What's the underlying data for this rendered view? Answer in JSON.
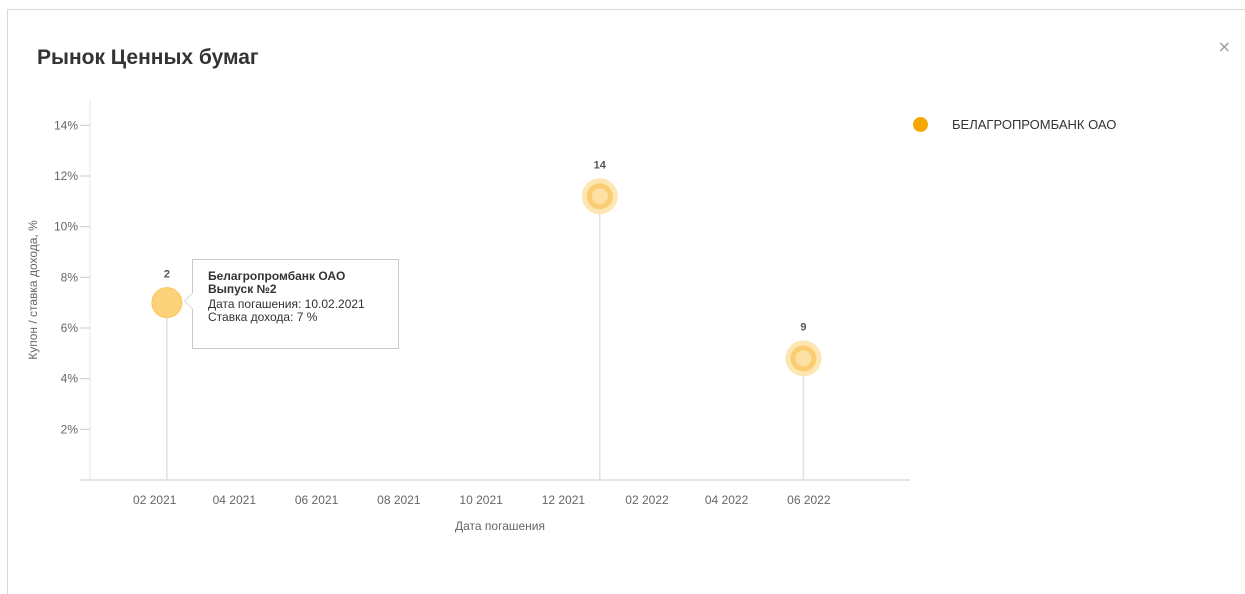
{
  "modal": {
    "title": "Рынок Ценных бумаг",
    "close_label": "×"
  },
  "tooltip": {
    "title_line1": "Белагропромбанк ОАО",
    "title_line2": "Выпуск №2",
    "maturity_label": "Дата погашения: 10.02.2021",
    "rate_label": "Ставка дохода: 7 %"
  },
  "chart_data": {
    "type": "scatter",
    "title": "",
    "xlabel": "Дата погашения",
    "ylabel": "Купон / ставка дохода, %",
    "ylim": [
      0,
      15
    ],
    "yticks": [
      {
        "value": 2,
        "label": "2%"
      },
      {
        "value": 4,
        "label": "4%"
      },
      {
        "value": 6,
        "label": "6%"
      },
      {
        "value": 8,
        "label": "8%"
      },
      {
        "value": 10,
        "label": "10%"
      },
      {
        "value": 12,
        "label": "12%"
      },
      {
        "value": 14,
        "label": "14%"
      }
    ],
    "xlim": [
      "2020-12-15",
      "2022-08-15"
    ],
    "xticks": [
      {
        "date": "2021-02-01",
        "label": "02 2021"
      },
      {
        "date": "2021-04-01",
        "label": "04 2021"
      },
      {
        "date": "2021-06-01",
        "label": "06 2021"
      },
      {
        "date": "2021-08-01",
        "label": "08 2021"
      },
      {
        "date": "2021-10-01",
        "label": "10 2021"
      },
      {
        "date": "2021-12-01",
        "label": "12 2021"
      },
      {
        "date": "2022-02-01",
        "label": "02 2022"
      },
      {
        "date": "2022-04-01",
        "label": "04 2022"
      },
      {
        "date": "2022-06-01",
        "label": "06 2022"
      }
    ],
    "grid": false,
    "legend_position": "top-right",
    "series": [
      {
        "name": "БЕЛАГРОПРОМБАНК ОАО",
        "color": "#f7a800",
        "points": [
          {
            "x": "2021-02-10",
            "y": 7,
            "label": "2",
            "highlighted": true
          },
          {
            "x": "2021-12-28",
            "y": 11.2,
            "label": "14",
            "highlighted": false
          },
          {
            "x": "2022-05-28",
            "y": 4.8,
            "label": "9",
            "highlighted": false
          }
        ]
      }
    ]
  }
}
